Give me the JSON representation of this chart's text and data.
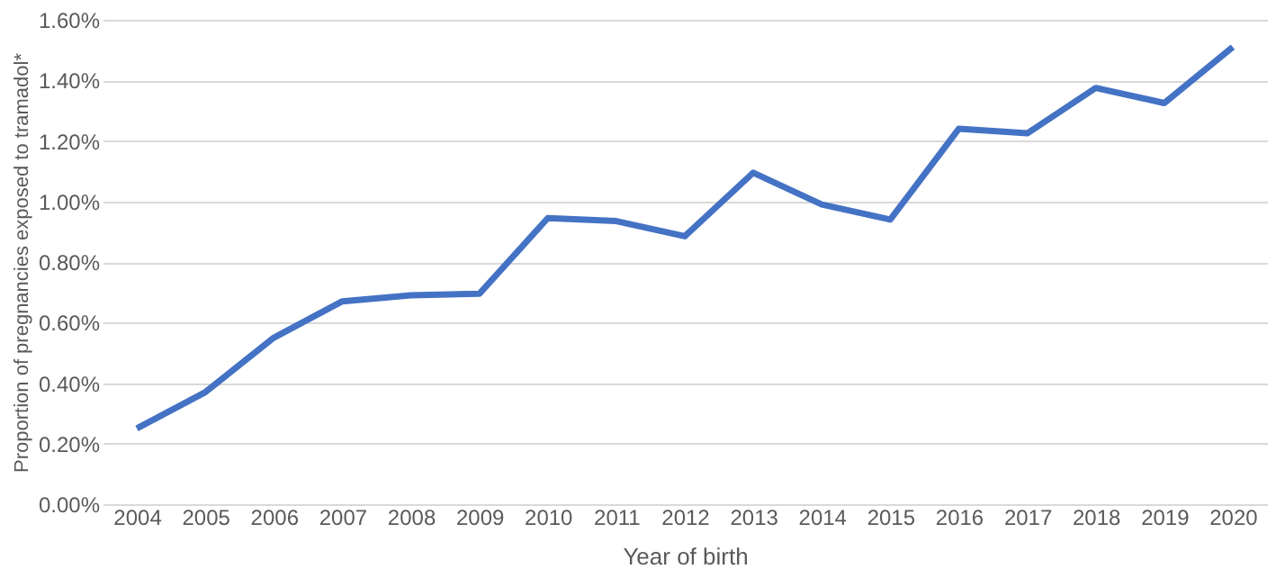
{
  "chart_data": {
    "type": "line",
    "xlabel": "Year of birth",
    "ylabel": "Proportion of pregnancies exposed to tramadol*",
    "categories": [
      "2004",
      "2005",
      "2006",
      "2007",
      "2008",
      "2009",
      "2010",
      "2011",
      "2012",
      "2013",
      "2014",
      "2015",
      "2016",
      "2017",
      "2018",
      "2019",
      "2020"
    ],
    "series": [
      {
        "color": "#4472c4",
        "values": [
          0.25,
          0.37,
          0.55,
          0.67,
          0.69,
          0.695,
          0.945,
          0.935,
          0.885,
          1.095,
          0.99,
          0.94,
          1.24,
          1.225,
          1.375,
          1.325,
          1.51
        ]
      }
    ],
    "ylim": [
      0,
      1.6
    ],
    "yticks": [
      {
        "value": 0,
        "label": "0.00%"
      },
      {
        "value": 0.2,
        "label": "0.20%"
      },
      {
        "value": 0.4,
        "label": "0.40%"
      },
      {
        "value": 0.6,
        "label": "0.60%"
      },
      {
        "value": 0.8,
        "label": "0.80%"
      },
      {
        "value": 1.0,
        "label": "1.00%"
      },
      {
        "value": 1.2,
        "label": "1.20%"
      },
      {
        "value": 1.4,
        "label": "1.40%"
      },
      {
        "value": 1.6,
        "label": "1.60%"
      }
    ],
    "grid": "y",
    "legend": false,
    "marker": "none",
    "line_style": "solid"
  }
}
